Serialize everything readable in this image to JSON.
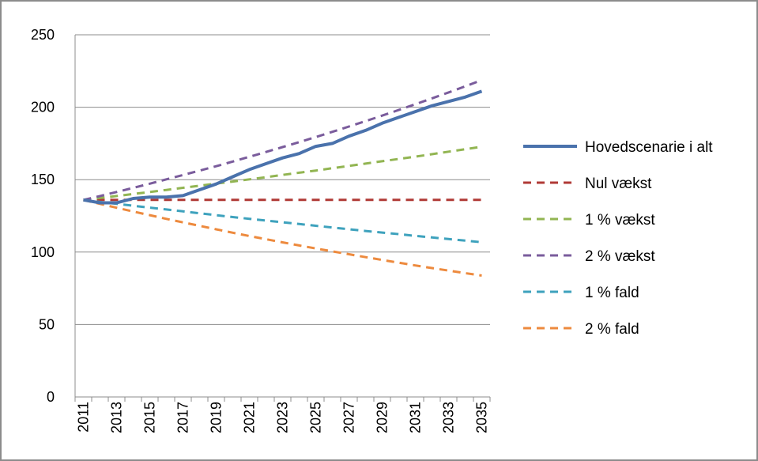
{
  "chart_data": {
    "type": "line",
    "title": "",
    "xlabel": "",
    "ylabel": "",
    "x": [
      2011,
      2012,
      2013,
      2014,
      2015,
      2016,
      2017,
      2018,
      2019,
      2020,
      2021,
      2022,
      2023,
      2024,
      2025,
      2026,
      2027,
      2028,
      2029,
      2030,
      2031,
      2032,
      2033,
      2034,
      2035
    ],
    "x_tick_labels": [
      "2011",
      "2013",
      "2015",
      "2017",
      "2019",
      "2021",
      "2023",
      "2025",
      "2027",
      "2029",
      "2031",
      "2033",
      "2035"
    ],
    "y_tick_labels": [
      "0",
      "50",
      "100",
      "150",
      "200",
      "250"
    ],
    "ylim": [
      0,
      250
    ],
    "grid": "horizontal",
    "legend_position": "right",
    "series": [
      {
        "name": "Hovedscenarie i alt",
        "style": "solid",
        "color": "#4a72ac",
        "values": [
          136,
          134,
          134,
          137,
          138,
          138,
          139,
          143,
          147,
          152,
          157,
          161,
          165,
          168,
          173,
          175,
          180,
          184,
          189,
          193,
          197,
          201,
          204,
          207,
          211
        ]
      },
      {
        "name": "Nul vækst",
        "style": "dashed",
        "color": "#b03a36",
        "values": [
          136,
          136,
          136,
          136,
          136,
          136,
          136,
          136,
          136,
          136,
          136,
          136,
          136,
          136,
          136,
          136,
          136,
          136,
          136,
          136,
          136,
          136,
          136,
          136,
          136
        ]
      },
      {
        "name": "1 % vækst",
        "style": "dashed",
        "color": "#92b552",
        "values": [
          136,
          137.4,
          138.7,
          140.1,
          141.5,
          142.9,
          144.4,
          145.8,
          147.3,
          148.7,
          150.2,
          151.7,
          153.3,
          154.8,
          156.3,
          157.9,
          159.5,
          161.1,
          162.7,
          164.3,
          165.9,
          167.6,
          169.3,
          171.0,
          172.7
        ]
      },
      {
        "name": "2 % vækst",
        "style": "dashed",
        "color": "#7a5c9c",
        "values": [
          136,
          138.7,
          141.5,
          144.3,
          147.2,
          150.2,
          153.2,
          156.2,
          159.3,
          162.5,
          165.8,
          169.1,
          172.5,
          175.9,
          179.4,
          183.0,
          186.7,
          190.4,
          194.2,
          198.1,
          202.1,
          206.1,
          210.2,
          214.4,
          218.7
        ]
      },
      {
        "name": "1 % fald",
        "style": "dashed",
        "color": "#3ea2bd",
        "values": [
          136,
          134.6,
          133.3,
          132.0,
          130.7,
          129.4,
          128.1,
          126.8,
          125.5,
          124.2,
          123.0,
          121.8,
          120.6,
          119.4,
          118.2,
          117.0,
          115.8,
          114.6,
          113.5,
          112.4,
          111.2,
          110.1,
          109.0,
          107.9,
          106.8
        ]
      },
      {
        "name": "2 % fald",
        "style": "dashed",
        "color": "#ed8a3e",
        "values": [
          136,
          133.3,
          130.6,
          128.0,
          125.5,
          122.9,
          120.5,
          118.1,
          115.7,
          113.4,
          111.1,
          108.9,
          106.7,
          104.6,
          102.5,
          100.5,
          98.5,
          96.5,
          94.6,
          92.7,
          90.8,
          89.0,
          87.2,
          85.5,
          83.8
        ]
      }
    ]
  }
}
